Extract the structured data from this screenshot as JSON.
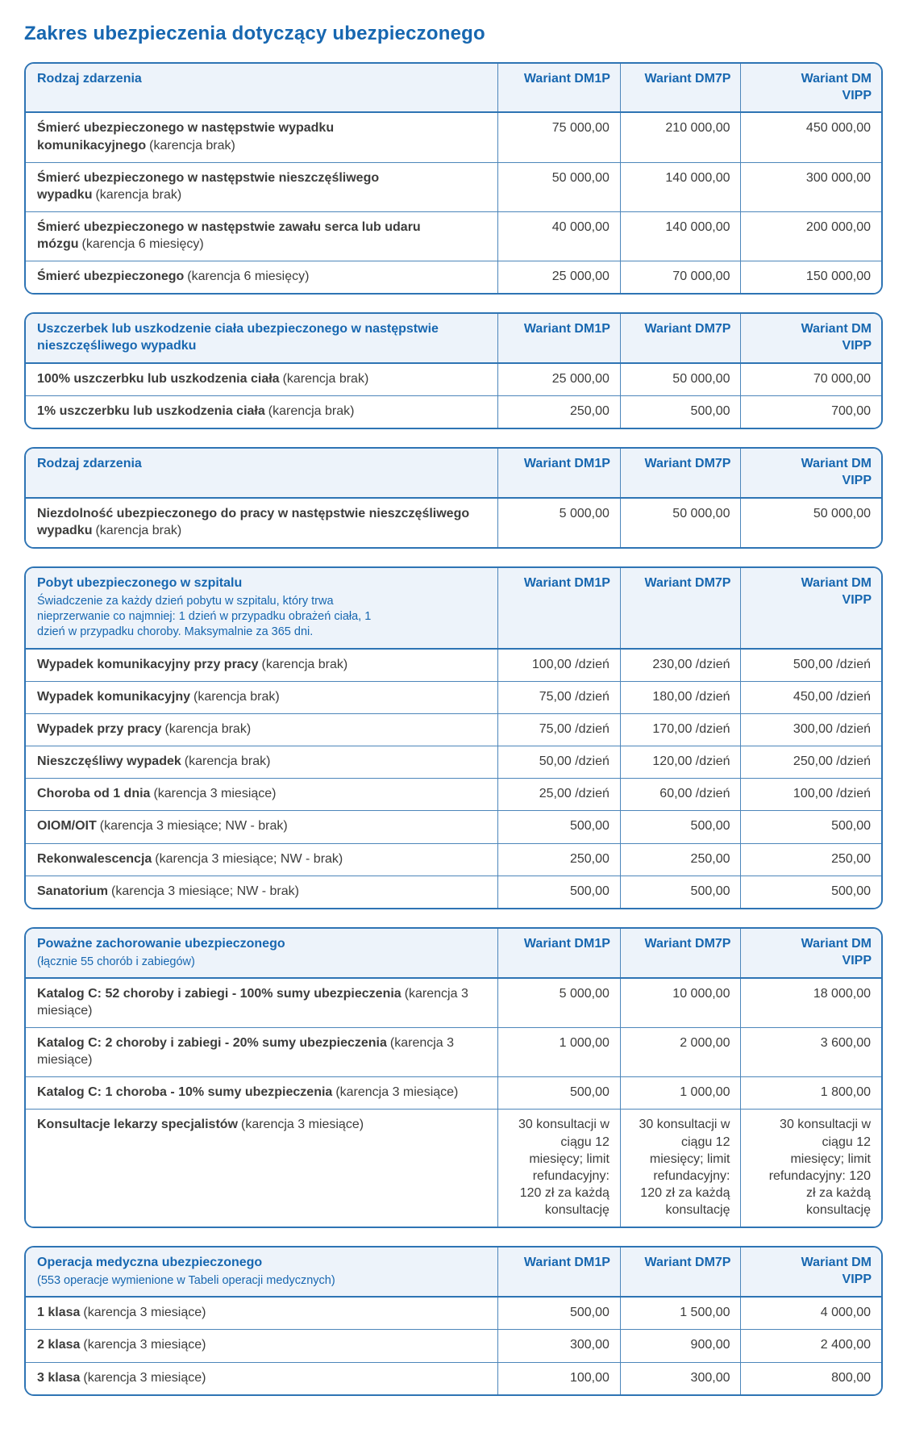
{
  "page": {
    "title": "Zakres ubezpieczenia dotyczący ubezpieczonego"
  },
  "colors": {
    "accent_blue": "#1767b0",
    "table_border_blue": "#2e74b4",
    "inner_line_blue": "#4d86ba",
    "header_bg": "#edf3fa",
    "body_text": "#3c3c3b"
  },
  "tables": [
    {
      "header": {
        "title": "Rodzaj zdarzenia",
        "variants": [
          "Wariant DM1P",
          "Wariant DM7P",
          "Wariant DM VIPP"
        ]
      },
      "rows": [
        {
          "label": "Śmierć ubezpieczonego w następstwie wypadku komunikacyjnego",
          "note": "(karencja brak)",
          "values": [
            "75 000,00",
            "210 000,00",
            "450 000,00"
          ]
        },
        {
          "label": "Śmierć ubezpieczonego w następstwie nieszczęśliwego wypadku",
          "note": "(karencja brak)",
          "values": [
            "50 000,00",
            "140 000,00",
            "300 000,00"
          ]
        },
        {
          "label": "Śmierć ubezpieczonego w następstwie zawału serca lub udaru mózgu",
          "note": "(karencja 6 miesięcy)",
          "values": [
            "40 000,00",
            "140 000,00",
            "200 000,00"
          ]
        },
        {
          "label": "Śmierć ubezpieczonego",
          "note": "(karencja 6 miesięcy)",
          "values": [
            "25 000,00",
            "70 000,00",
            "150 000,00"
          ]
        }
      ]
    },
    {
      "header": {
        "title": "Uszczerbek lub uszkodzenie ciała ubezpieczonego w następstwie nieszczęśliwego wypadku",
        "variants": [
          "Wariant DM1P",
          "Wariant DM7P",
          "Wariant DM VIPP"
        ]
      },
      "rows": [
        {
          "label": "100% uszczerbku lub uszkodzenia ciała",
          "note": "(karencja brak)",
          "values": [
            "25 000,00",
            "50 000,00",
            "70 000,00"
          ]
        },
        {
          "label": "1% uszczerbku lub uszkodzenia ciała",
          "note": "(karencja brak)",
          "values": [
            "250,00",
            "500,00",
            "700,00"
          ]
        }
      ]
    },
    {
      "header": {
        "title": "Rodzaj zdarzenia",
        "variants": [
          "Wariant DM1P",
          "Wariant DM7P",
          "Wariant DM VIPP"
        ]
      },
      "rows": [
        {
          "label": "Niezdolność ubezpieczonego do pracy w następstwie nieszczęśliwego wypadku",
          "note": "(karencja brak)",
          "values": [
            "5 000,00",
            "50 000,00",
            "50 000,00"
          ]
        }
      ]
    },
    {
      "header": {
        "title": "Pobyt ubezpieczonego w szpitalu",
        "subtitle": "Świadczenie za każdy dzień pobytu w szpitalu, który trwa nieprzerwanie co najmniej: 1 dzień w przypadku obrażeń ciała, 1 dzień w przypadku choroby. Maksymalnie za 365 dni.",
        "variants": [
          "Wariant DM1P",
          "Wariant DM7P",
          "Wariant DM VIPP"
        ]
      },
      "rows": [
        {
          "label": "Wypadek komunikacyjny przy pracy",
          "note": "(karencja brak)",
          "values": [
            "100,00 /dzień",
            "230,00 /dzień",
            "500,00 /dzień"
          ]
        },
        {
          "label": "Wypadek komunikacyjny",
          "note": "(karencja brak)",
          "values": [
            "75,00 /dzień",
            "180,00 /dzień",
            "450,00 /dzień"
          ]
        },
        {
          "label": "Wypadek przy pracy",
          "note": "(karencja brak)",
          "values": [
            "75,00 /dzień",
            "170,00 /dzień",
            "300,00 /dzień"
          ]
        },
        {
          "label": "Nieszczęśliwy wypadek",
          "note": "(karencja brak)",
          "values": [
            "50,00 /dzień",
            "120,00 /dzień",
            "250,00 /dzień"
          ]
        },
        {
          "label": "Choroba od 1 dnia",
          "note": "(karencja 3 miesiące)",
          "values": [
            "25,00 /dzień",
            "60,00 /dzień",
            "100,00 /dzień"
          ]
        },
        {
          "label": "OIOM/OIT",
          "note": "(karencja 3 miesiące; NW - brak)",
          "values": [
            "500,00",
            "500,00",
            "500,00"
          ]
        },
        {
          "label": "Rekonwalescencja",
          "note": "(karencja 3 miesiące; NW - brak)",
          "values": [
            "250,00",
            "250,00",
            "250,00"
          ]
        },
        {
          "label": "Sanatorium",
          "note": "(karencja 3 miesiące; NW - brak)",
          "values": [
            "500,00",
            "500,00",
            "500,00"
          ]
        }
      ]
    },
    {
      "header": {
        "title": "Poważne zachorowanie ubezpieczonego",
        "subtitle": "(łącznie 55 chorób i zabiegów)",
        "variants": [
          "Wariant DM1P",
          "Wariant DM7P",
          "Wariant DM VIPP"
        ]
      },
      "rows": [
        {
          "label": "Katalog C: 52 choroby i zabiegi - 100% sumy ubezpieczenia",
          "note": "(karencja 3 miesiące)",
          "values": [
            "5 000,00",
            "10 000,00",
            "18 000,00"
          ]
        },
        {
          "label": "Katalog C: 2 choroby i zabiegi - 20% sumy ubezpieczenia",
          "note": "(karencja 3 miesiące)",
          "values": [
            "1 000,00",
            "2 000,00",
            "3 600,00"
          ]
        },
        {
          "label": "Katalog C: 1 choroba - 10% sumy ubezpieczenia",
          "note": "(karencja 3 miesiące)",
          "values": [
            "500,00",
            "1 000,00",
            "1 800,00"
          ]
        },
        {
          "label": "Konsultacje lekarzy specjalistów",
          "note": "(karencja 3 miesiące)",
          "values": [
            "30 konsultacji w ciągu 12 miesięcy; limit refundacyjny: 120 zł za każdą konsultację",
            "30 konsultacji w ciągu 12 miesięcy; limit refundacyjny: 120 zł za każdą konsultację",
            "30 konsultacji w ciągu 12 miesięcy; limit refundacyjny: 120 zł za każdą konsultację"
          ]
        }
      ]
    },
    {
      "header": {
        "title": "Operacja medyczna ubezpieczonego",
        "subtitle": "(553 operacje wymienione w Tabeli operacji medycznych)",
        "variants": [
          "Wariant DM1P",
          "Wariant DM7P",
          "Wariant DM VIPP"
        ]
      },
      "rows": [
        {
          "label": "1 klasa",
          "note": "(karencja 3 miesiące)",
          "values": [
            "500,00",
            "1 500,00",
            "4 000,00"
          ]
        },
        {
          "label": "2 klasa",
          "note": "(karencja 3 miesiące)",
          "values": [
            "300,00",
            "900,00",
            "2 400,00"
          ]
        },
        {
          "label": "3 klasa",
          "note": "(karencja 3 miesiące)",
          "values": [
            "100,00",
            "300,00",
            "800,00"
          ]
        }
      ]
    }
  ]
}
